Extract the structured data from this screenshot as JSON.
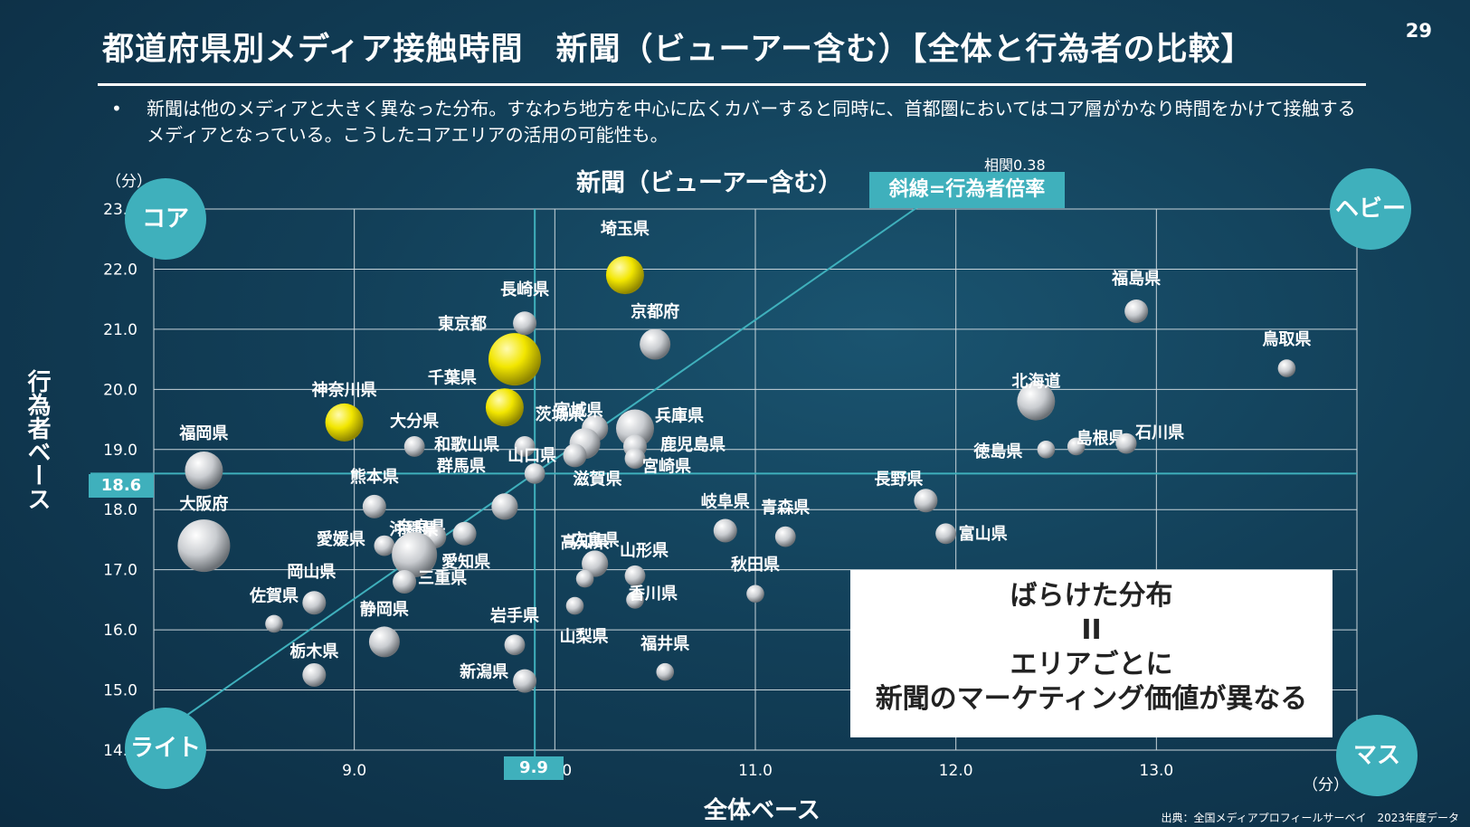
{
  "page": {
    "title": "都道府県別メディア接触時間　新聞（ビューアー含む）【全体と行為者の比較】",
    "page_number": "29",
    "bullet": "•",
    "bullet_text": "新聞は他のメディアと大きく異なった分布。すなわち地方を中心に広くカバーすると同時に、首都圏においてはコア層がかなり時間をかけて接触するメディアとなっている。こうしたコアエリアの活用の可能性も。",
    "correlation": "相関0.38",
    "diagonal_label": "斜線=行為者倍率",
    "unit_y": "（分）",
    "unit_x": "（分）",
    "mark_y": "18.6",
    "mark_x": "9.9",
    "corners": {
      "core": "コア",
      "heavy": "ヘビー",
      "light": "ライト",
      "mass": "マス"
    },
    "callout": {
      "line1": "ばらけた分布",
      "line2": "II",
      "line3": "エリアごとに",
      "line4": "新聞のマーケティング価値が異なる"
    },
    "source": "出典：全国メディアプロフィールサーベイ　2023年度データ"
  },
  "colors": {
    "accent": "#3fb0bc",
    "highlight": "#f2e600",
    "bubble": "#d9d9d9"
  },
  "chart_data": {
    "type": "scatter",
    "title": "新聞（ビューアー含む）",
    "xlabel": "全体ベース",
    "ylabel": "行為者ベース",
    "xlim": [
      8.0,
      14.0
    ],
    "ylim": [
      14.0,
      23.0
    ],
    "x_ticks": [
      "9.0",
      "10.0",
      "11.0",
      "12.0",
      "13.0"
    ],
    "y_ticks": [
      "14.0",
      "15.0",
      "16.0",
      "17.0",
      "18.0",
      "19.0",
      "20.0",
      "21.0",
      "22.0",
      "23.0"
    ],
    "reference_lines": {
      "x": 9.9,
      "y": 18.6
    },
    "grid": true,
    "points": [
      {
        "name": "埼玉県",
        "x": 10.35,
        "y": 21.9,
        "highlight": true,
        "size": 2
      },
      {
        "name": "東京都",
        "x": 9.8,
        "y": 20.5,
        "highlight": true,
        "size": 3
      },
      {
        "name": "千葉県",
        "x": 9.75,
        "y": 19.7,
        "highlight": true,
        "size": 2
      },
      {
        "name": "神奈川県",
        "x": 8.95,
        "y": 19.45,
        "highlight": true,
        "size": 2
      },
      {
        "name": "長崎県",
        "x": 9.85,
        "y": 21.1,
        "size": 1
      },
      {
        "name": "京都府",
        "x": 10.5,
        "y": 20.75,
        "size": 1.5
      },
      {
        "name": "福島県",
        "x": 12.9,
        "y": 21.3,
        "size": 1
      },
      {
        "name": "鳥取県",
        "x": 13.65,
        "y": 20.35,
        "size": 0.6
      },
      {
        "name": "北海道",
        "x": 12.4,
        "y": 19.8,
        "size": 2
      },
      {
        "name": "島根県",
        "x": 12.6,
        "y": 19.05,
        "size": 0.6
      },
      {
        "name": "石川県",
        "x": 12.85,
        "y": 19.1,
        "size": 0.8
      },
      {
        "name": "徳島県",
        "x": 12.45,
        "y": 19.0,
        "size": 0.6
      },
      {
        "name": "長野県",
        "x": 11.85,
        "y": 18.15,
        "size": 1
      },
      {
        "name": "富山県",
        "x": 11.95,
        "y": 17.6,
        "size": 0.8
      },
      {
        "name": "宮城県",
        "x": 10.2,
        "y": 19.35,
        "size": 1.2
      },
      {
        "name": "兵庫県",
        "x": 10.4,
        "y": 19.35,
        "size": 2
      },
      {
        "name": "鹿児島県",
        "x": 10.4,
        "y": 19.05,
        "size": 1
      },
      {
        "name": "宮崎県",
        "x": 10.4,
        "y": 18.85,
        "size": 0.8
      },
      {
        "name": "茨城県",
        "x": 10.15,
        "y": 19.1,
        "size": 1.5
      },
      {
        "name": "滋賀県",
        "x": 10.1,
        "y": 18.9,
        "size": 1
      },
      {
        "name": "和歌山県",
        "x": 9.85,
        "y": 19.05,
        "size": 0.8
      },
      {
        "name": "大分県",
        "x": 9.3,
        "y": 19.05,
        "size": 0.8
      },
      {
        "name": "山口県",
        "x": 9.9,
        "y": 18.6,
        "size": 0.8
      },
      {
        "name": "群馬県",
        "x": 9.75,
        "y": 18.05,
        "size": 1.2
      },
      {
        "name": "福岡県",
        "x": 8.25,
        "y": 18.65,
        "size": 2
      },
      {
        "name": "大阪府",
        "x": 8.25,
        "y": 17.4,
        "size": 3
      },
      {
        "name": "熊本県",
        "x": 9.1,
        "y": 18.05,
        "size": 1
      },
      {
        "name": "奈良県",
        "x": 9.55,
        "y": 17.6,
        "size": 1
      },
      {
        "name": "沖縄県",
        "x": 9.4,
        "y": 17.55,
        "size": 1
      },
      {
        "name": "愛媛県",
        "x": 9.15,
        "y": 17.4,
        "size": 0.8
      },
      {
        "name": "愛知県",
        "x": 9.3,
        "y": 17.25,
        "size": 2.5
      },
      {
        "name": "岡山県",
        "x": 8.8,
        "y": 16.45,
        "size": 1
      },
      {
        "name": "三重県",
        "x": 9.25,
        "y": 16.8,
        "size": 1
      },
      {
        "name": "佐賀県",
        "x": 8.6,
        "y": 16.1,
        "size": 0.6
      },
      {
        "name": "静岡県",
        "x": 9.15,
        "y": 15.8,
        "size": 1.5
      },
      {
        "name": "栃木県",
        "x": 8.8,
        "y": 15.25,
        "size": 1
      },
      {
        "name": "岩手県",
        "x": 9.8,
        "y": 15.75,
        "size": 0.8
      },
      {
        "name": "新潟県",
        "x": 9.85,
        "y": 15.15,
        "size": 1
      },
      {
        "name": "広島県",
        "x": 10.2,
        "y": 17.1,
        "size": 1.2
      },
      {
        "name": "高知県",
        "x": 10.15,
        "y": 16.85,
        "size": 0.6
      },
      {
        "name": "山形県",
        "x": 10.4,
        "y": 16.9,
        "size": 0.8
      },
      {
        "name": "香川県",
        "x": 10.4,
        "y": 16.5,
        "size": 0.6
      },
      {
        "name": "山梨県",
        "x": 10.1,
        "y": 16.4,
        "size": 0.6
      },
      {
        "name": "福井県",
        "x": 10.55,
        "y": 15.3,
        "size": 0.6
      },
      {
        "name": "岐阜県",
        "x": 10.85,
        "y": 17.65,
        "size": 1
      },
      {
        "name": "青森県",
        "x": 11.15,
        "y": 17.55,
        "size": 0.8
      },
      {
        "name": "秋田県",
        "x": 11.0,
        "y": 16.6,
        "size": 0.6
      }
    ]
  }
}
